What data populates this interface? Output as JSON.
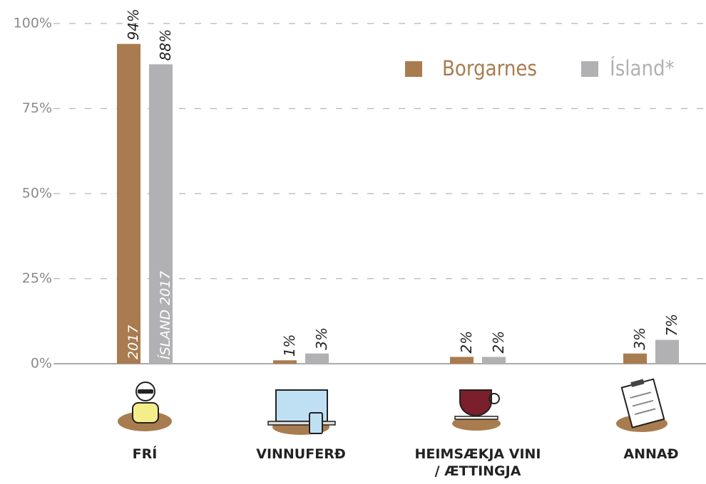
{
  "chart_data": {
    "type": "bar",
    "categories": [
      "FRÍ",
      "VINNUFERÐ",
      "HEIMSÆKJA VINI\n/ ÆTTINGJA",
      "ANNAÐ"
    ],
    "series": [
      {
        "name": "Borgarnes",
        "color": "#a97c50",
        "values": [
          94,
          1,
          2,
          3
        ],
        "value_labels": [
          "94%",
          "1%",
          "2%",
          "3%"
        ],
        "annotation": "2017"
      },
      {
        "name": "Ísland*",
        "color": "#b1b1b3",
        "values": [
          88,
          3,
          2,
          7
        ],
        "value_labels": [
          "88%",
          "3%",
          "2%",
          "7%"
        ],
        "annotation": "ÍSLAND 2017"
      }
    ],
    "ylim": [
      0,
      100
    ],
    "yticks": [
      {
        "value": 0,
        "label": "0%"
      },
      {
        "value": 25,
        "label": "25%"
      },
      {
        "value": 50,
        "label": "50%"
      },
      {
        "value": 75,
        "label": "75%"
      },
      {
        "value": 100,
        "label": "100%"
      }
    ],
    "grid": true,
    "legend": "upper right"
  }
}
